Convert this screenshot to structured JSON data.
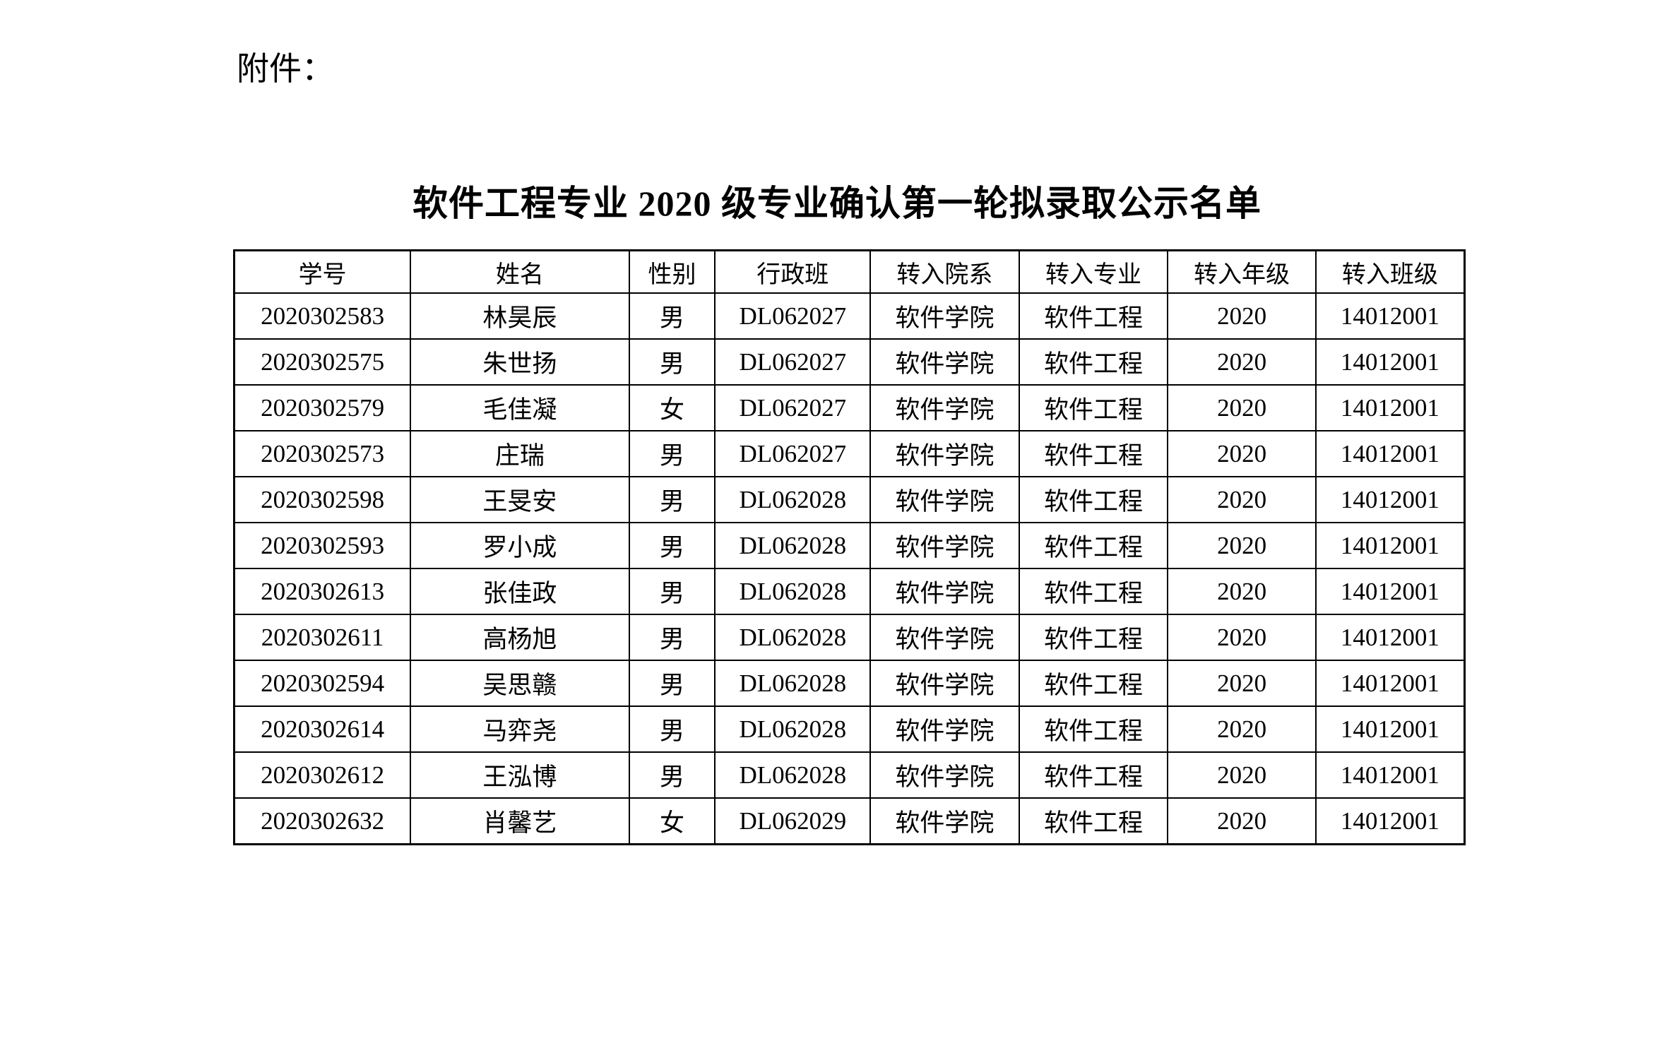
{
  "page": {
    "attachment_label": "附件：",
    "title": "软件工程专业 2020 级专业确认第一轮拟录取公示名单"
  },
  "colors": {
    "background": "#ffffff",
    "text": "#000000",
    "table_border": "#000000"
  },
  "table": {
    "headers": [
      "学号",
      "姓名",
      "性别",
      "行政班",
      "转入院系",
      "转入专业",
      "转入年级",
      "转入班级"
    ],
    "rows": [
      [
        "2020302583",
        "林昊辰",
        "男",
        "DL062027",
        "软件学院",
        "软件工程",
        "2020",
        "14012001"
      ],
      [
        "2020302575",
        "朱世扬",
        "男",
        "DL062027",
        "软件学院",
        "软件工程",
        "2020",
        "14012001"
      ],
      [
        "2020302579",
        "毛佳凝",
        "女",
        "DL062027",
        "软件学院",
        "软件工程",
        "2020",
        "14012001"
      ],
      [
        "2020302573",
        "庄瑞",
        "男",
        "DL062027",
        "软件学院",
        "软件工程",
        "2020",
        "14012001"
      ],
      [
        "2020302598",
        "王旻安",
        "男",
        "DL062028",
        "软件学院",
        "软件工程",
        "2020",
        "14012001"
      ],
      [
        "2020302593",
        "罗小成",
        "男",
        "DL062028",
        "软件学院",
        "软件工程",
        "2020",
        "14012001"
      ],
      [
        "2020302613",
        "张佳政",
        "男",
        "DL062028",
        "软件学院",
        "软件工程",
        "2020",
        "14012001"
      ],
      [
        "2020302611",
        "高杨旭",
        "男",
        "DL062028",
        "软件学院",
        "软件工程",
        "2020",
        "14012001"
      ],
      [
        "2020302594",
        "吴思赣",
        "男",
        "DL062028",
        "软件学院",
        "软件工程",
        "2020",
        "14012001"
      ],
      [
        "2020302614",
        "马弈尧",
        "男",
        "DL062028",
        "软件学院",
        "软件工程",
        "2020",
        "14012001"
      ],
      [
        "2020302612",
        "王泓博",
        "男",
        "DL062028",
        "软件学院",
        "软件工程",
        "2020",
        "14012001"
      ],
      [
        "2020302632",
        "肖馨艺",
        "女",
        "DL062029",
        "软件学院",
        "软件工程",
        "2020",
        "14012001"
      ]
    ]
  }
}
